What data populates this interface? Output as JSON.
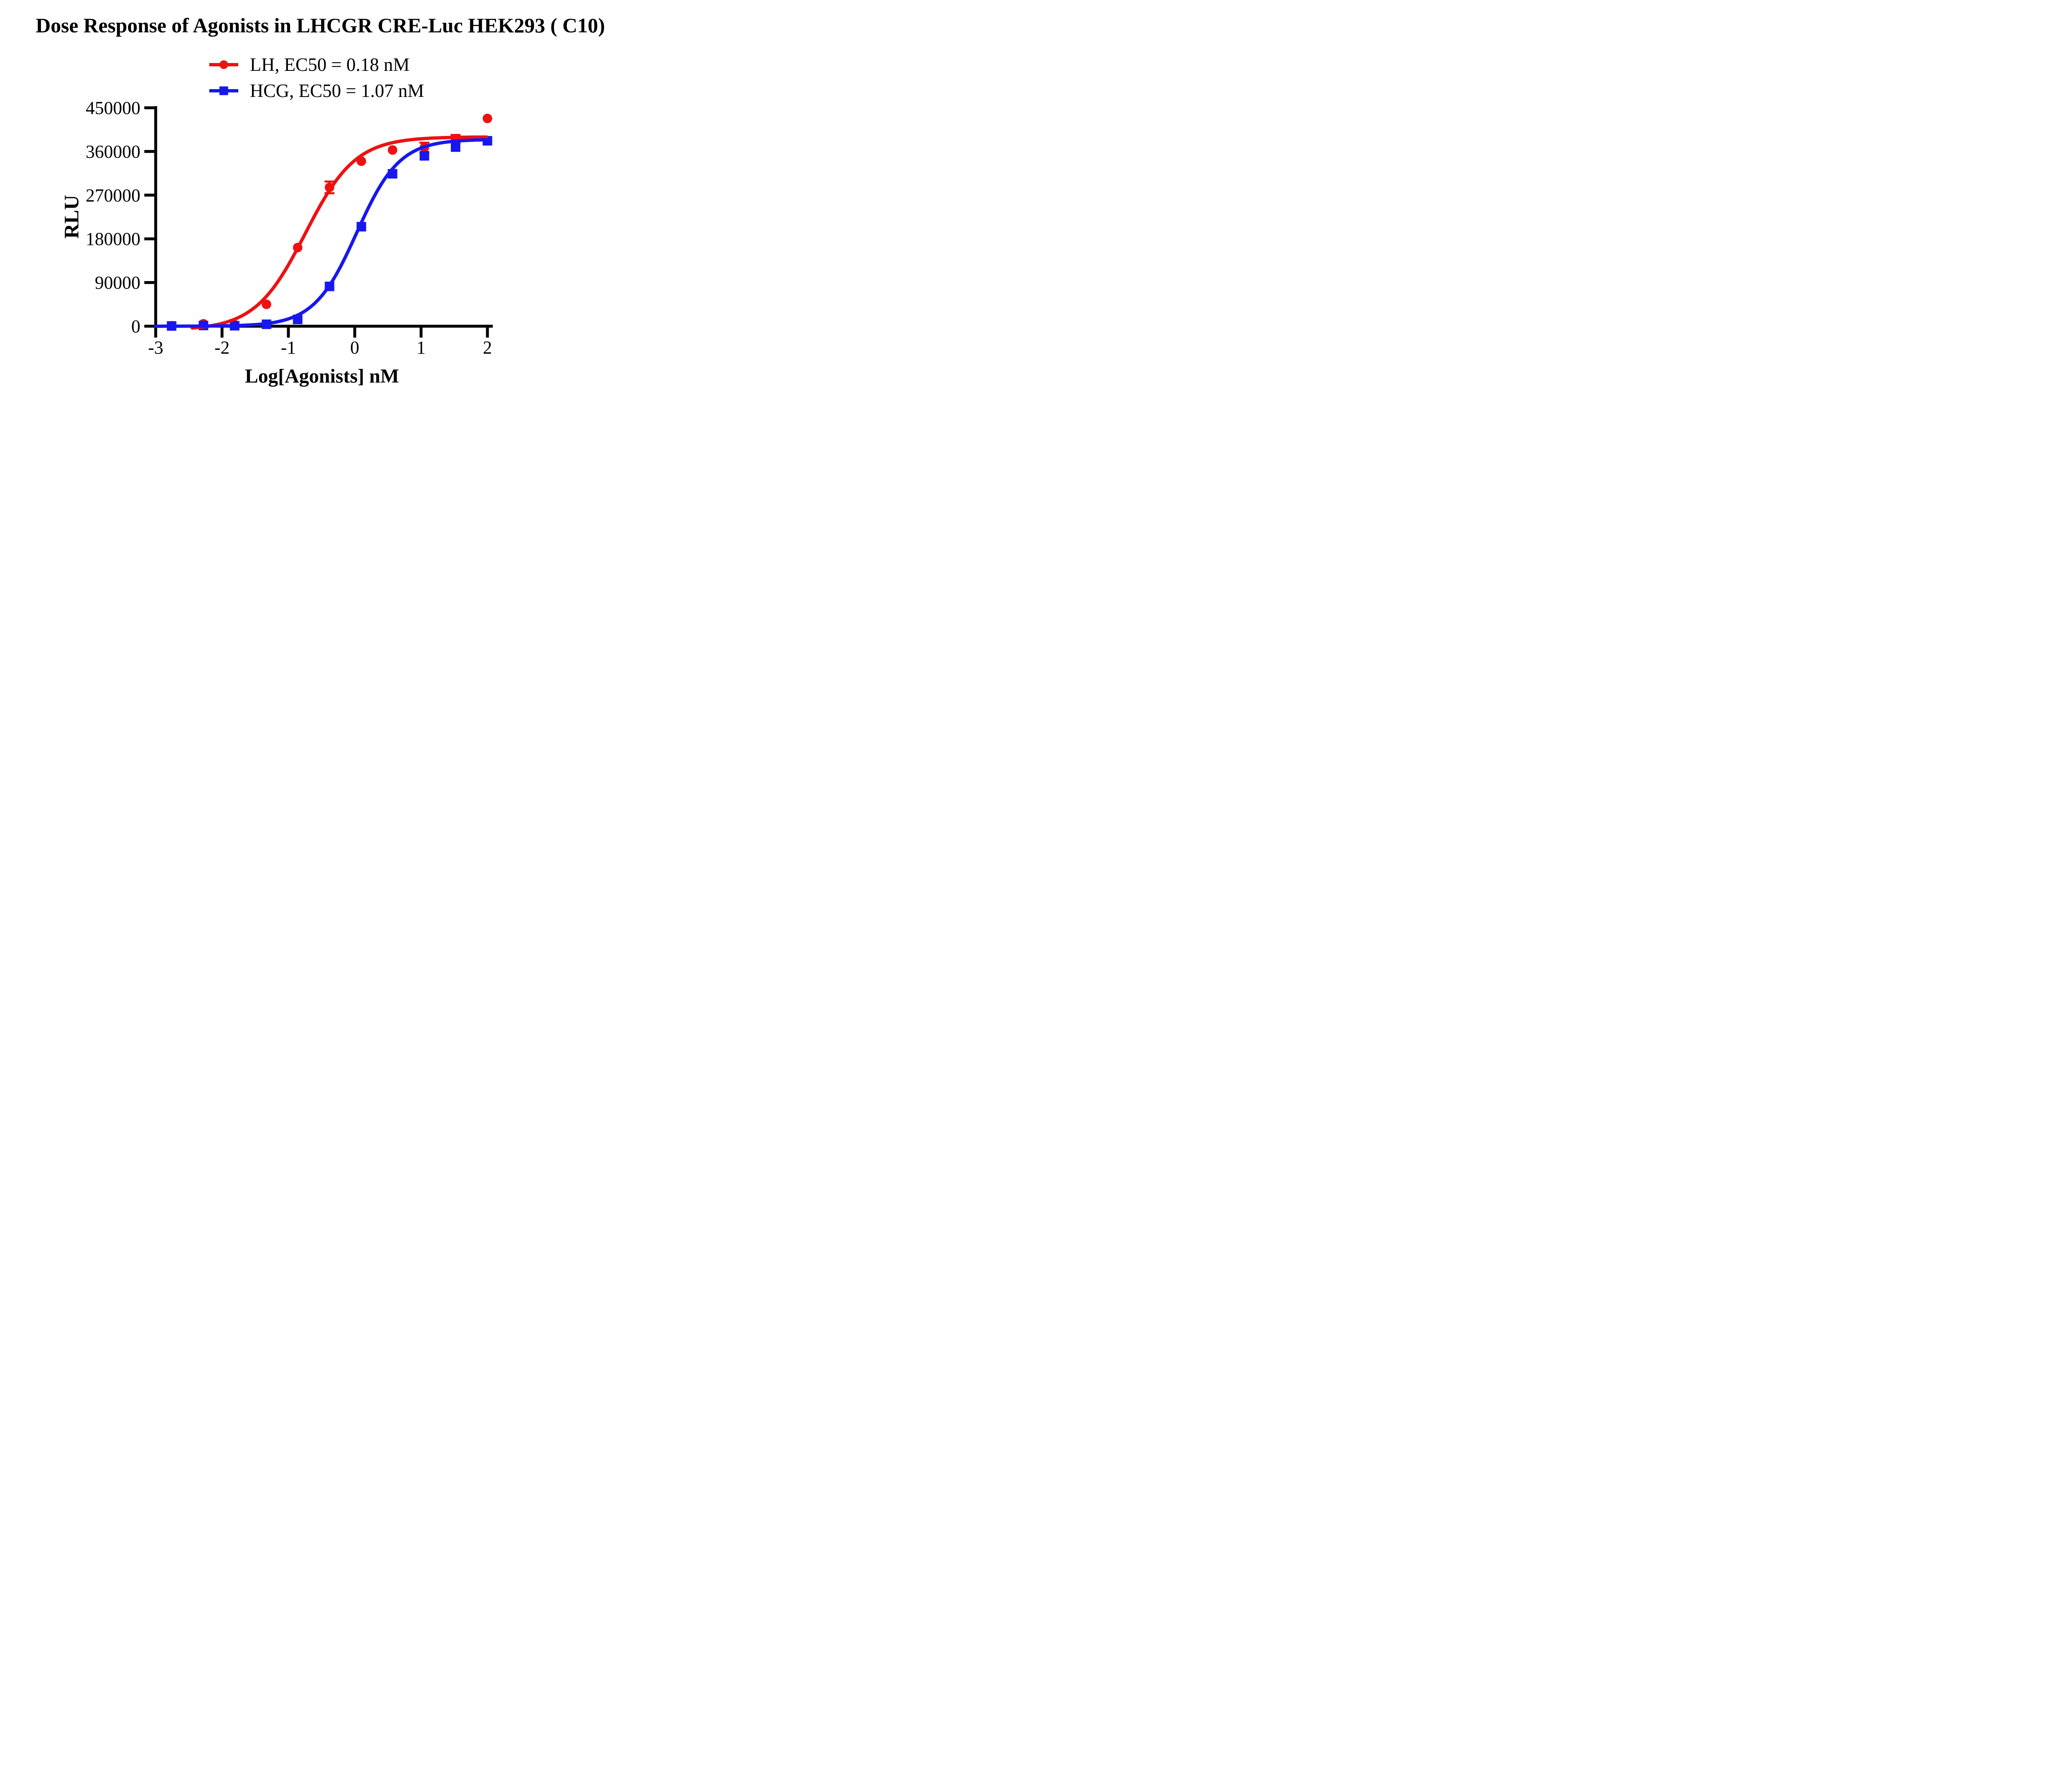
{
  "figure": {
    "background": "#ffffff",
    "text_color": "#000000"
  },
  "chart_data": {
    "type": "scatter",
    "title": "Dose Response of Agonists in LHCGR CRE-Luc HEK293 ( C10)",
    "xlabel": "Log[Agonists] nM",
    "ylabel": "RLU",
    "xlim": [
      -3,
      2
    ],
    "ylim": [
      0,
      450000
    ],
    "x_ticks": [
      -3,
      -2,
      -1,
      0,
      1,
      2
    ],
    "y_ticks": [
      0,
      90000,
      180000,
      270000,
      360000,
      450000
    ],
    "grid": false,
    "legend_position": "top-center",
    "series": [
      {
        "name": "LH, EC50 = 0.18 nM",
        "agonist": "LH",
        "ec50_nM": 0.18,
        "color": "#ee1111",
        "marker": "circle",
        "x": [
          -2.76,
          -2.28,
          -1.81,
          -1.33,
          -0.86,
          -0.38,
          0.1,
          0.57,
          1.05,
          1.52,
          2.0
        ],
        "y": [
          1000,
          5000,
          3000,
          45000,
          162000,
          286000,
          340000,
          363000,
          368000,
          386000,
          428000
        ],
        "error_bars": [
          {
            "x": -0.38,
            "y": 286000,
            "err": 12000
          },
          {
            "x": 1.05,
            "y": 368000,
            "err": 10000
          },
          {
            "x": 1.52,
            "y": 386000,
            "err": 8000
          }
        ],
        "fit_curve": {
          "model": "4PL",
          "bottom": -8000,
          "top": 390000,
          "log_ec50": -0.745,
          "hill": 1.15,
          "x_start": -2.45,
          "x_end": 2
        }
      },
      {
        "name": "HCG, EC50 = 1.07 nM",
        "agonist": "HCG",
        "ec50_nM": 1.07,
        "color": "#1717f0",
        "marker": "square",
        "x": [
          -2.76,
          -2.28,
          -1.81,
          -1.33,
          -0.86,
          -0.38,
          0.1,
          0.57,
          1.05,
          1.52,
          2.0
        ],
        "y": [
          500,
          1500,
          1000,
          4000,
          14000,
          82000,
          205000,
          314000,
          351000,
          369000,
          382000
        ],
        "error_bars": [],
        "fit_curve": {
          "model": "4PL",
          "bottom": 0,
          "top": 385000,
          "log_ec50": 0.03,
          "hill": 1.35,
          "x_start": -3,
          "x_end": 2
        }
      }
    ]
  }
}
